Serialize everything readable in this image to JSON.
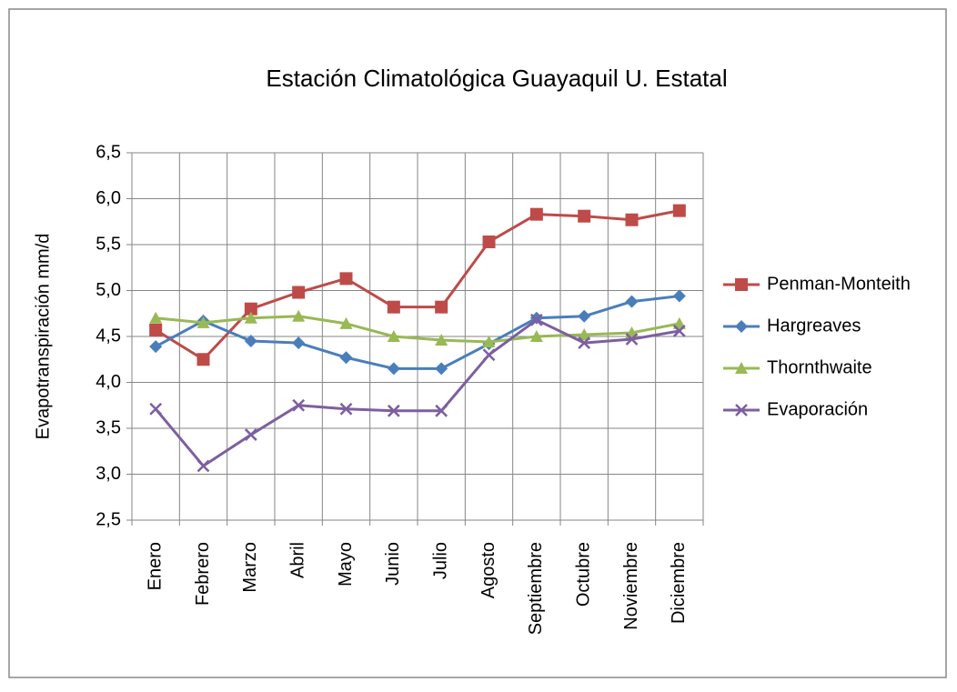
{
  "chart_data": {
    "type": "line",
    "title": "Estación Climatológica Guayaquil U. Estatal",
    "y_label": "Evapotranspiración  mm/d",
    "categories": [
      "Enero",
      "Febrero",
      "Marzo",
      "Abril",
      "Mayo",
      "Junio",
      "Julio",
      "Agosto",
      "Septiembre",
      "Octubre",
      "Noviembre",
      "Diciembre"
    ],
    "series": [
      {
        "name": "Penman-Monteith",
        "color": "#be4b48",
        "marker": "square",
        "values": [
          4.57,
          4.25,
          4.8,
          4.98,
          5.13,
          4.82,
          4.82,
          5.53,
          5.83,
          5.81,
          5.77,
          5.87
        ]
      },
      {
        "name": "Hargreaves",
        "color": "#4a7ebb",
        "marker": "diamond",
        "values": [
          4.39,
          4.67,
          4.45,
          4.43,
          4.27,
          4.15,
          4.15,
          4.42,
          4.7,
          4.72,
          4.88,
          4.94
        ]
      },
      {
        "name": "Thornthwaite",
        "color": "#98b954",
        "marker": "triangle",
        "values": [
          4.7,
          4.65,
          4.7,
          4.72,
          4.64,
          4.5,
          4.46,
          4.44,
          4.5,
          4.52,
          4.54,
          4.64
        ]
      },
      {
        "name": "Evaporación",
        "color": "#7d5fa0",
        "marker": "x",
        "values": [
          3.71,
          3.09,
          3.43,
          3.75,
          3.71,
          3.69,
          3.69,
          4.3,
          4.68,
          4.43,
          4.47,
          4.56
        ]
      }
    ],
    "ylim": [
      2.5,
      6.5
    ],
    "yticks": [
      {
        "value": 2.5,
        "label": "2,5"
      },
      {
        "value": 3.0,
        "label": "3,0"
      },
      {
        "value": 3.5,
        "label": "3,5"
      },
      {
        "value": 4.0,
        "label": "4,0"
      },
      {
        "value": 4.5,
        "label": "4,5"
      },
      {
        "value": 5.0,
        "label": "5,0"
      },
      {
        "value": 5.5,
        "label": "5,5"
      },
      {
        "value": 6.0,
        "label": "6,0"
      },
      {
        "value": 6.5,
        "label": "6,5"
      }
    ],
    "grid": true,
    "legend": "right"
  }
}
